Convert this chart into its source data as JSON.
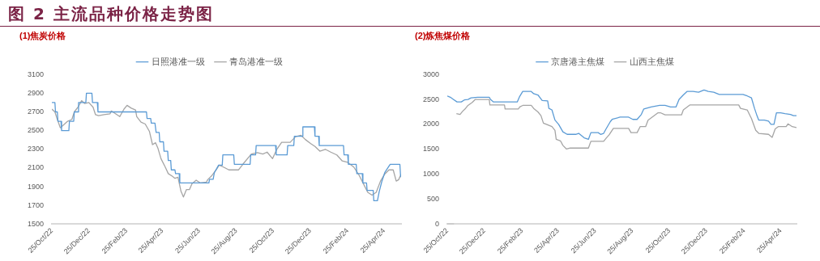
{
  "chart_data": [
    {
      "type": "other",
      "title": "图 2 主流品种价格走势图"
    },
    {
      "type": "line",
      "title": "(1)焦炭价格",
      "legend": "top",
      "grid": false,
      "marker": "none",
      "line_style": "solid",
      "xlim": [
        "2022-10-25",
        "2024-05-23"
      ],
      "xticks": [
        {
          "value": "2022-10-25",
          "label": "25/Oct/22"
        },
        {
          "value": "2022-12-25",
          "label": "25/Dec/22"
        },
        {
          "value": "2023-02-25",
          "label": "25/Feb/23"
        },
        {
          "value": "2023-04-25",
          "label": "25/Apr/23"
        },
        {
          "value": "2023-06-25",
          "label": "25/Jun/23"
        },
        {
          "value": "2023-08-25",
          "label": "25/Aug/23"
        },
        {
          "value": "2023-10-25",
          "label": "25/Oct/23"
        },
        {
          "value": "2023-12-25",
          "label": "25/Dec/23"
        },
        {
          "value": "2024-02-25",
          "label": "25/Feb/24"
        },
        {
          "value": "2024-04-25",
          "label": "25/Apr/24"
        }
      ],
      "ylim": [
        1500,
        3100
      ],
      "yticks": [
        1500,
        1700,
        1900,
        2100,
        2300,
        2500,
        2700,
        2900,
        3100
      ],
      "series": [
        {
          "name": "日照港准一级",
          "color": "#5b9bd5",
          "x": [
            "2022-10-25",
            "2022-10-30",
            "2022-10-31",
            "2022-11-03",
            "2022-11-04",
            "2022-11-09",
            "2022-11-10",
            "2022-11-22",
            "2022-11-23",
            "2022-11-30",
            "2022-12-01",
            "2022-12-07",
            "2022-12-08",
            "2022-12-20",
            "2022-12-21",
            "2022-12-30",
            "2022-12-31",
            "2023-01-08",
            "2023-01-09",
            "2023-03-30",
            "2023-03-31",
            "2023-04-06",
            "2023-04-07",
            "2023-04-13",
            "2023-04-15",
            "2023-04-20",
            "2023-04-21",
            "2023-04-27",
            "2023-04-28",
            "2023-05-04",
            "2023-05-05",
            "2023-05-09",
            "2023-05-10",
            "2023-05-16",
            "2023-05-17",
            "2023-05-23",
            "2023-05-24",
            "2023-07-11",
            "2023-07-12",
            "2023-07-18",
            "2023-07-20",
            "2023-07-27",
            "2023-08-02",
            "2023-08-03",
            "2023-08-21",
            "2023-08-22",
            "2023-09-17",
            "2023-09-18",
            "2023-09-26",
            "2023-09-27",
            "2023-10-29",
            "2023-10-30",
            "2023-11-17",
            "2023-11-18",
            "2023-11-28",
            "2023-11-29",
            "2023-12-12",
            "2023-12-13",
            "2024-01-01",
            "2024-01-02",
            "2024-01-08",
            "2024-01-09",
            "2024-02-18",
            "2024-02-19",
            "2024-02-25",
            "2024-02-26",
            "2024-03-10",
            "2024-03-11",
            "2024-03-20",
            "2024-03-21",
            "2024-03-27",
            "2024-03-28",
            "2024-04-07",
            "2024-04-08",
            "2024-04-14",
            "2024-04-17",
            "2024-04-21",
            "2024-04-26",
            "2024-05-01",
            "2024-05-05",
            "2024-05-21",
            "2024-05-22",
            "2024-05-23"
          ],
          "values": [
            2800,
            2800,
            2700,
            2700,
            2600,
            2600,
            2500,
            2500,
            2600,
            2600,
            2700,
            2700,
            2800,
            2800,
            2900,
            2900,
            2800,
            2800,
            2700,
            2700,
            2630,
            2630,
            2580,
            2580,
            2480,
            2480,
            2380,
            2380,
            2280,
            2280,
            2180,
            2180,
            2080,
            2080,
            2040,
            2040,
            1940,
            1940,
            1980,
            1980,
            2050,
            2130,
            2130,
            2240,
            2240,
            2140,
            2140,
            2240,
            2240,
            2340,
            2340,
            2240,
            2240,
            2340,
            2340,
            2440,
            2440,
            2540,
            2540,
            2440,
            2440,
            2340,
            2340,
            2240,
            2240,
            2140,
            2140,
            2040,
            2040,
            1940,
            1940,
            1860,
            1860,
            1750,
            1750,
            1850,
            1950,
            2050,
            2100,
            2140,
            2140,
            2030,
            2000
          ]
        },
        {
          "name": "青岛港准一级",
          "color": "#a5a5a5",
          "x": [
            "2022-10-25",
            "2022-10-30",
            "2022-11-03",
            "2022-11-08",
            "2022-11-13",
            "2022-11-20",
            "2022-11-27",
            "2022-12-01",
            "2022-12-08",
            "2022-12-13",
            "2022-12-18",
            "2022-12-25",
            "2023-01-01",
            "2023-01-05",
            "2023-01-10",
            "2023-01-19",
            "2023-01-29",
            "2023-01-31",
            "2023-02-07",
            "2023-02-14",
            "2023-02-21",
            "2023-02-26",
            "2023-03-05",
            "2023-03-12",
            "2023-03-14",
            "2023-03-21",
            "2023-03-28",
            "2023-04-04",
            "2023-04-09",
            "2023-04-14",
            "2023-04-18",
            "2023-04-23",
            "2023-04-30",
            "2023-05-05",
            "2023-05-12",
            "2023-05-16",
            "2023-05-21",
            "2023-05-26",
            "2023-05-30",
            "2023-06-04",
            "2023-06-09",
            "2023-06-13",
            "2023-06-20",
            "2023-06-27",
            "2023-07-07",
            "2023-07-09",
            "2023-07-16",
            "2023-07-23",
            "2023-07-28",
            "2023-08-04",
            "2023-08-13",
            "2023-08-29",
            "2023-09-05",
            "2023-09-19",
            "2023-09-29",
            "2023-10-08",
            "2023-10-15",
            "2023-10-24",
            "2023-10-31",
            "2023-11-08",
            "2023-11-22",
            "2023-12-01",
            "2023-12-10",
            "2023-12-17",
            "2023-12-26",
            "2024-01-02",
            "2024-01-10",
            "2024-01-19",
            "2024-01-28",
            "2024-02-07",
            "2024-02-16",
            "2024-02-25",
            "2024-03-06",
            "2024-03-15",
            "2024-03-22",
            "2024-03-29",
            "2024-04-05",
            "2024-04-12",
            "2024-04-19",
            "2024-04-26",
            "2024-05-03",
            "2024-05-10",
            "2024-05-15",
            "2024-05-19",
            "2024-05-23"
          ],
          "values": [
            2730,
            2700,
            2620,
            2530,
            2560,
            2600,
            2620,
            2700,
            2760,
            2820,
            2790,
            2800,
            2750,
            2670,
            2660,
            2670,
            2680,
            2710,
            2680,
            2650,
            2730,
            2770,
            2740,
            2720,
            2650,
            2590,
            2570,
            2490,
            2350,
            2370,
            2310,
            2200,
            2110,
            2040,
            2010,
            1990,
            2000,
            1850,
            1790,
            1870,
            1870,
            1930,
            1970,
            1940,
            1950,
            1975,
            2020,
            2080,
            2130,
            2110,
            2080,
            2080,
            2140,
            2250,
            2265,
            2250,
            2270,
            2200,
            2300,
            2375,
            2375,
            2435,
            2450,
            2405,
            2360,
            2330,
            2280,
            2300,
            2270,
            2240,
            2175,
            2160,
            2110,
            2020,
            1930,
            1840,
            1810,
            1840,
            1960,
            2035,
            2080,
            2080,
            1960,
            1975,
            2035
          ]
        }
      ]
    },
    {
      "type": "line",
      "title": "(2)炼焦煤价格",
      "legend": "top",
      "grid": false,
      "marker": "none",
      "line_style": "solid",
      "xlim": [
        "2022-10-25",
        "2024-05-21"
      ],
      "xticks": [
        {
          "value": "2022-10-25",
          "label": "25/Oct/22"
        },
        {
          "value": "2022-12-25",
          "label": "25/Dec/22"
        },
        {
          "value": "2023-02-25",
          "label": "25/Feb/23"
        },
        {
          "value": "2023-04-25",
          "label": "25/Apr/23"
        },
        {
          "value": "2023-06-25",
          "label": "25/Jun/23"
        },
        {
          "value": "2023-08-25",
          "label": "25/Aug/23"
        },
        {
          "value": "2023-10-25",
          "label": "25/Oct/23"
        },
        {
          "value": "2023-12-25",
          "label": "25/Dec/23"
        },
        {
          "value": "2024-02-25",
          "label": "25/Feb/24"
        },
        {
          "value": "2024-04-25",
          "label": "25/Apr/24"
        }
      ],
      "ylim": [
        0,
        3000
      ],
      "yticks": [
        0,
        500,
        1000,
        1500,
        2000,
        2500,
        3000
      ],
      "series": [
        {
          "name": "京唐港主焦煤",
          "color": "#5b9bd5",
          "x": [
            "2022-10-25",
            "2022-10-30",
            "2022-11-03",
            "2022-11-10",
            "2022-11-17",
            "2022-11-22",
            "2022-11-28",
            "2022-12-03",
            "2022-12-14",
            "2023-01-02",
            "2023-01-04",
            "2023-01-09",
            "2023-02-17",
            "2023-02-21",
            "2023-02-26",
            "2023-03-12",
            "2023-03-16",
            "2023-03-23",
            "2023-03-30",
            "2023-04-08",
            "2023-04-10",
            "2023-04-15",
            "2023-04-20",
            "2023-04-26",
            "2023-05-03",
            "2023-05-10",
            "2023-05-24",
            "2023-05-29",
            "2023-06-07",
            "2023-06-14",
            "2023-06-18",
            "2023-06-30",
            "2023-07-04",
            "2023-07-09",
            "2023-07-13",
            "2023-07-20",
            "2023-07-23",
            "2023-08-05",
            "2023-08-19",
            "2023-08-26",
            "2023-09-02",
            "2023-09-09",
            "2023-09-13",
            "2023-09-25",
            "2023-10-09",
            "2023-10-18",
            "2023-10-27",
            "2023-11-05",
            "2023-11-10",
            "2023-11-17",
            "2023-11-23",
            "2023-12-03",
            "2023-12-12",
            "2023-12-21",
            "2023-12-28",
            "2024-01-06",
            "2024-01-15",
            "2024-02-23",
            "2024-03-01",
            "2024-03-08",
            "2024-03-13",
            "2024-03-17",
            "2024-03-20",
            "2024-03-29",
            "2024-04-05",
            "2024-04-09",
            "2024-04-14",
            "2024-04-18",
            "2024-04-25",
            "2024-05-02",
            "2024-05-11",
            "2024-05-16",
            "2024-05-21"
          ],
          "values": [
            2570,
            2545,
            2510,
            2450,
            2450,
            2490,
            2500,
            2530,
            2545,
            2545,
            2500,
            2450,
            2450,
            2560,
            2660,
            2660,
            2615,
            2590,
            2480,
            2470,
            2320,
            2290,
            2085,
            2000,
            1850,
            1800,
            1800,
            1820,
            1730,
            1700,
            1835,
            1835,
            1800,
            1820,
            1910,
            2055,
            2100,
            2145,
            2145,
            2100,
            2100,
            2200,
            2310,
            2350,
            2380,
            2380,
            2350,
            2350,
            2500,
            2590,
            2660,
            2660,
            2645,
            2690,
            2660,
            2645,
            2600,
            2600,
            2570,
            2530,
            2320,
            2175,
            2085,
            2085,
            2065,
            2000,
            2000,
            2230,
            2230,
            2215,
            2200,
            2175,
            2175
          ]
        },
        {
          "name": "山西主焦煤",
          "color": "#a5a5a5",
          "x": [
            "2022-10-25",
            "2022-11-05",
            "2022-11-07",
            "2022-11-09",
            "2022-11-15",
            "2022-11-19",
            "2022-11-24",
            "2022-11-28",
            "2022-12-05",
            "2022-12-10",
            "2023-01-02",
            "2023-01-03",
            "2023-01-27",
            "2023-01-28",
            "2023-02-19",
            "2023-02-21",
            "2023-02-26",
            "2023-03-12",
            "2023-03-16",
            "2023-03-23",
            "2023-03-28",
            "2023-04-01",
            "2023-04-06",
            "2023-04-15",
            "2023-04-20",
            "2023-04-22",
            "2023-04-29",
            "2023-05-03",
            "2023-05-09",
            "2023-05-15",
            "2023-06-14",
            "2023-06-18",
            "2023-07-09",
            "2023-07-13",
            "2023-07-18",
            "2023-07-25",
            "2023-08-19",
            "2023-08-23",
            "2023-09-02",
            "2023-09-07",
            "2023-09-16",
            "2023-09-20",
            "2023-10-06",
            "2023-10-11",
            "2023-10-18",
            "2023-11-14",
            "2023-11-17",
            "2023-11-28",
            "2024-02-16",
            "2024-02-19",
            "2024-03-01",
            "2024-03-08",
            "2024-03-15",
            "2024-03-20",
            "2024-04-05",
            "2024-04-11",
            "2024-04-16",
            "2024-04-21",
            "2024-05-04",
            "2024-05-07",
            "2024-05-14",
            "2024-05-21"
          ],
          "values": [
            0,
            0,
            null,
            2215,
            2200,
            2260,
            2320,
            2380,
            2440,
            2500,
            2500,
            2390,
            2390,
            2310,
            2310,
            2350,
            2380,
            2380,
            2320,
            2250,
            2175,
            2025,
            2000,
            1955,
            1880,
            1700,
            1670,
            1580,
            1505,
            1525,
            1525,
            1660,
            1660,
            1720,
            1790,
            1920,
            1920,
            1835,
            1835,
            1955,
            1955,
            2085,
            2230,
            2230,
            2190,
            2190,
            2290,
            2390,
            2390,
            2320,
            2290,
            2115,
            1880,
            1820,
            1800,
            1740,
            1910,
            1955,
            1955,
            2010,
            1955,
            1935
          ]
        }
      ]
    }
  ]
}
